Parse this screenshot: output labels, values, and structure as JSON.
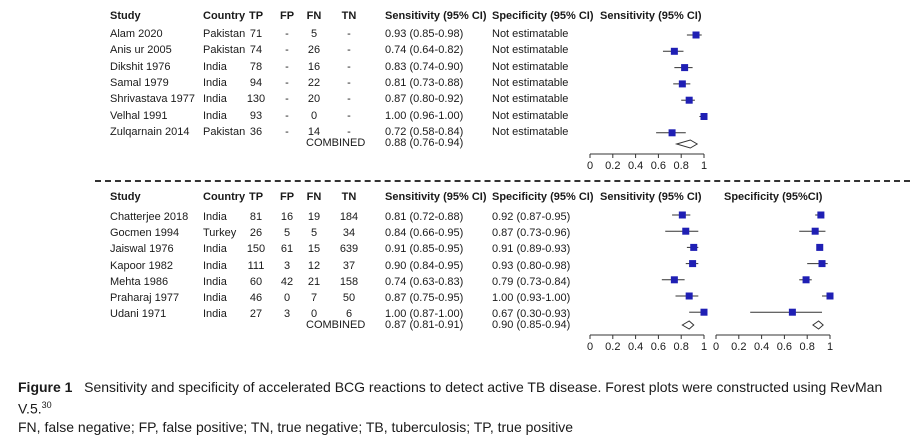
{
  "section1": {
    "headers": {
      "study": "Study",
      "country": "Country",
      "tp": "TP",
      "fp": "FP",
      "fn": "FN",
      "tn": "TN",
      "sens": "Sensitivity (95% CI)",
      "spec": "Specificity (95% CI)",
      "plot": "Sensitivity (95% CI)"
    },
    "rows": [
      {
        "study": "Alam 2020",
        "country": "Pakistan",
        "tp": "71",
        "fp": "-",
        "fn": "5",
        "tn": "-",
        "sens": "0.93 (0.85-0.98)",
        "spec": "Not estimatable"
      },
      {
        "study": "Anis ur 2005",
        "country": "Pakistan",
        "tp": "74",
        "fp": "-",
        "fn": "26",
        "tn": "-",
        "sens": "0.74 (0.64-0.82)",
        "spec": "Not estimatable"
      },
      {
        "study": "Dikshit 1976",
        "country": "India",
        "tp": "78",
        "fp": "-",
        "fn": "16",
        "tn": "-",
        "sens": "0.83 (0.74-0.90)",
        "spec": "Not estimatable"
      },
      {
        "study": "Samal 1979",
        "country": "India",
        "tp": "94",
        "fp": "-",
        "fn": "22",
        "tn": "-",
        "sens": "0.81 (0.73-0.88)",
        "spec": "Not estimatable"
      },
      {
        "study": "Shrivastava 1977",
        "country": "India",
        "tp": "130",
        "fp": "-",
        "fn": "20",
        "tn": "-",
        "sens": "0.87 (0.80-0.92)",
        "spec": "Not estimatable"
      },
      {
        "study": "Velhal 1991",
        "country": "India",
        "tp": "93",
        "fp": "-",
        "fn": "0",
        "tn": "-",
        "sens": "1.00 (0.96-1.00)",
        "spec": "Not estimatable"
      },
      {
        "study": "Zulqarnain 2014",
        "country": "Pakistan",
        "tp": "36",
        "fp": "-",
        "fn": "14",
        "tn": "-",
        "sens": "0.72 (0.58-0.84)",
        "spec": "Not estimatable"
      }
    ],
    "combined": {
      "label": "COMBINED",
      "sens": "0.88 (0.76-0.94)"
    }
  },
  "section2": {
    "headers": {
      "study": "Study",
      "country": "Country",
      "tp": "TP",
      "fp": "FP",
      "fn": "FN",
      "tn": "TN",
      "sens": "Sensitivity (95% CI)",
      "spec": "Specificity (95% CI)",
      "plot1": "Sensitivity (95% CI)",
      "plot2": "Specificity (95%CI)"
    },
    "rows": [
      {
        "study": "Chatterjee 2018",
        "country": "India",
        "tp": "81",
        "fp": "16",
        "fn": "19",
        "tn": "184",
        "sens": "0.81 (0.72-0.88)",
        "spec": "0.92 (0.87-0.95)"
      },
      {
        "study": "Gocmen 1994",
        "country": "Turkey",
        "tp": "26",
        "fp": "5",
        "fn": "5",
        "tn": "34",
        "sens": "0.84 (0.66-0.95)",
        "spec": "0.87 (0.73-0.96)"
      },
      {
        "study": "Jaiswal 1976",
        "country": "India",
        "tp": "150",
        "fp": "61",
        "fn": "15",
        "tn": "639",
        "sens": "0.91 (0.85-0.95)",
        "spec": "0.91 (0.89-0.93)"
      },
      {
        "study": "Kapoor 1982",
        "country": "India",
        "tp": "111",
        "fp": "3",
        "fn": "12",
        "tn": "37",
        "sens": "0.90 (0.84-0.95)",
        "spec": "0.93 (0.80-0.98)"
      },
      {
        "study": "Mehta 1986",
        "country": "India",
        "tp": "60",
        "fp": "42",
        "fn": "21",
        "tn": "158",
        "sens": "0.74 (0.63-0.83)",
        "spec": "0.79 (0.73-0.84)"
      },
      {
        "study": "Praharaj 1977",
        "country": "India",
        "tp": "46",
        "fp": "0",
        "fn": "7",
        "tn": "50",
        "sens": "0.87 (0.75-0.95)",
        "spec": "1.00 (0.93-1.00)"
      },
      {
        "study": "Udani 1971",
        "country": "India",
        "tp": "27",
        "fp": "3",
        "fn": "0",
        "tn": "6",
        "sens": "1.00 (0.87-1.00)",
        "spec": "0.67 (0.30-0.93)"
      }
    ],
    "combined": {
      "label": "COMBINED",
      "sens": "0.87 (0.81-0.91)",
      "spec": "0.90 (0.85-0.94)"
    }
  },
  "axis_ticks": [
    "0",
    "0.2",
    "0.4",
    "0.6",
    "0.8",
    "1"
  ],
  "chart_data": [
    {
      "type": "forest",
      "series_label": "Sensitivity (95% CI)",
      "xlim": [
        0,
        1
      ],
      "points": [
        {
          "est": 0.93,
          "lo": 0.85,
          "hi": 0.98
        },
        {
          "est": 0.74,
          "lo": 0.64,
          "hi": 0.82
        },
        {
          "est": 0.83,
          "lo": 0.74,
          "hi": 0.9
        },
        {
          "est": 0.81,
          "lo": 0.73,
          "hi": 0.88
        },
        {
          "est": 0.87,
          "lo": 0.8,
          "hi": 0.92
        },
        {
          "est": 1.0,
          "lo": 0.96,
          "hi": 1.0
        },
        {
          "est": 0.72,
          "lo": 0.58,
          "hi": 0.84
        }
      ],
      "combined": {
        "est": 0.88,
        "lo": 0.76,
        "hi": 0.94
      }
    },
    {
      "type": "forest",
      "series_label": "Sensitivity (95% CI)",
      "xlim": [
        0,
        1
      ],
      "points": [
        {
          "est": 0.81,
          "lo": 0.72,
          "hi": 0.88
        },
        {
          "est": 0.84,
          "lo": 0.66,
          "hi": 0.95
        },
        {
          "est": 0.91,
          "lo": 0.85,
          "hi": 0.95
        },
        {
          "est": 0.9,
          "lo": 0.84,
          "hi": 0.95
        },
        {
          "est": 0.74,
          "lo": 0.63,
          "hi": 0.83
        },
        {
          "est": 0.87,
          "lo": 0.75,
          "hi": 0.95
        },
        {
          "est": 1.0,
          "lo": 0.87,
          "hi": 1.0
        }
      ],
      "combined": {
        "est": 0.87,
        "lo": 0.81,
        "hi": 0.91
      }
    },
    {
      "type": "forest",
      "series_label": "Specificity (95%CI)",
      "xlim": [
        0,
        1
      ],
      "points": [
        {
          "est": 0.92,
          "lo": 0.87,
          "hi": 0.95
        },
        {
          "est": 0.87,
          "lo": 0.73,
          "hi": 0.96
        },
        {
          "est": 0.91,
          "lo": 0.89,
          "hi": 0.93
        },
        {
          "est": 0.93,
          "lo": 0.8,
          "hi": 0.98
        },
        {
          "est": 0.79,
          "lo": 0.73,
          "hi": 0.84
        },
        {
          "est": 1.0,
          "lo": 0.93,
          "hi": 1.0
        },
        {
          "est": 0.67,
          "lo": 0.3,
          "hi": 0.93
        }
      ],
      "combined": {
        "est": 0.9,
        "lo": 0.85,
        "hi": 0.94
      }
    }
  ],
  "colors": {
    "marker": "#1f1fb4",
    "line": "#333333"
  },
  "caption": {
    "label": "Figure 1",
    "text": "Sensitivity and specificity of accelerated BCG reactions to detect active TB disease. Forest plots were constructed using RevMan V.5.",
    "ref": "30",
    "abbrev": "FN, false negative; FP, false positive; TN, true negative; TB, tuberculosis; TP, true positive"
  }
}
